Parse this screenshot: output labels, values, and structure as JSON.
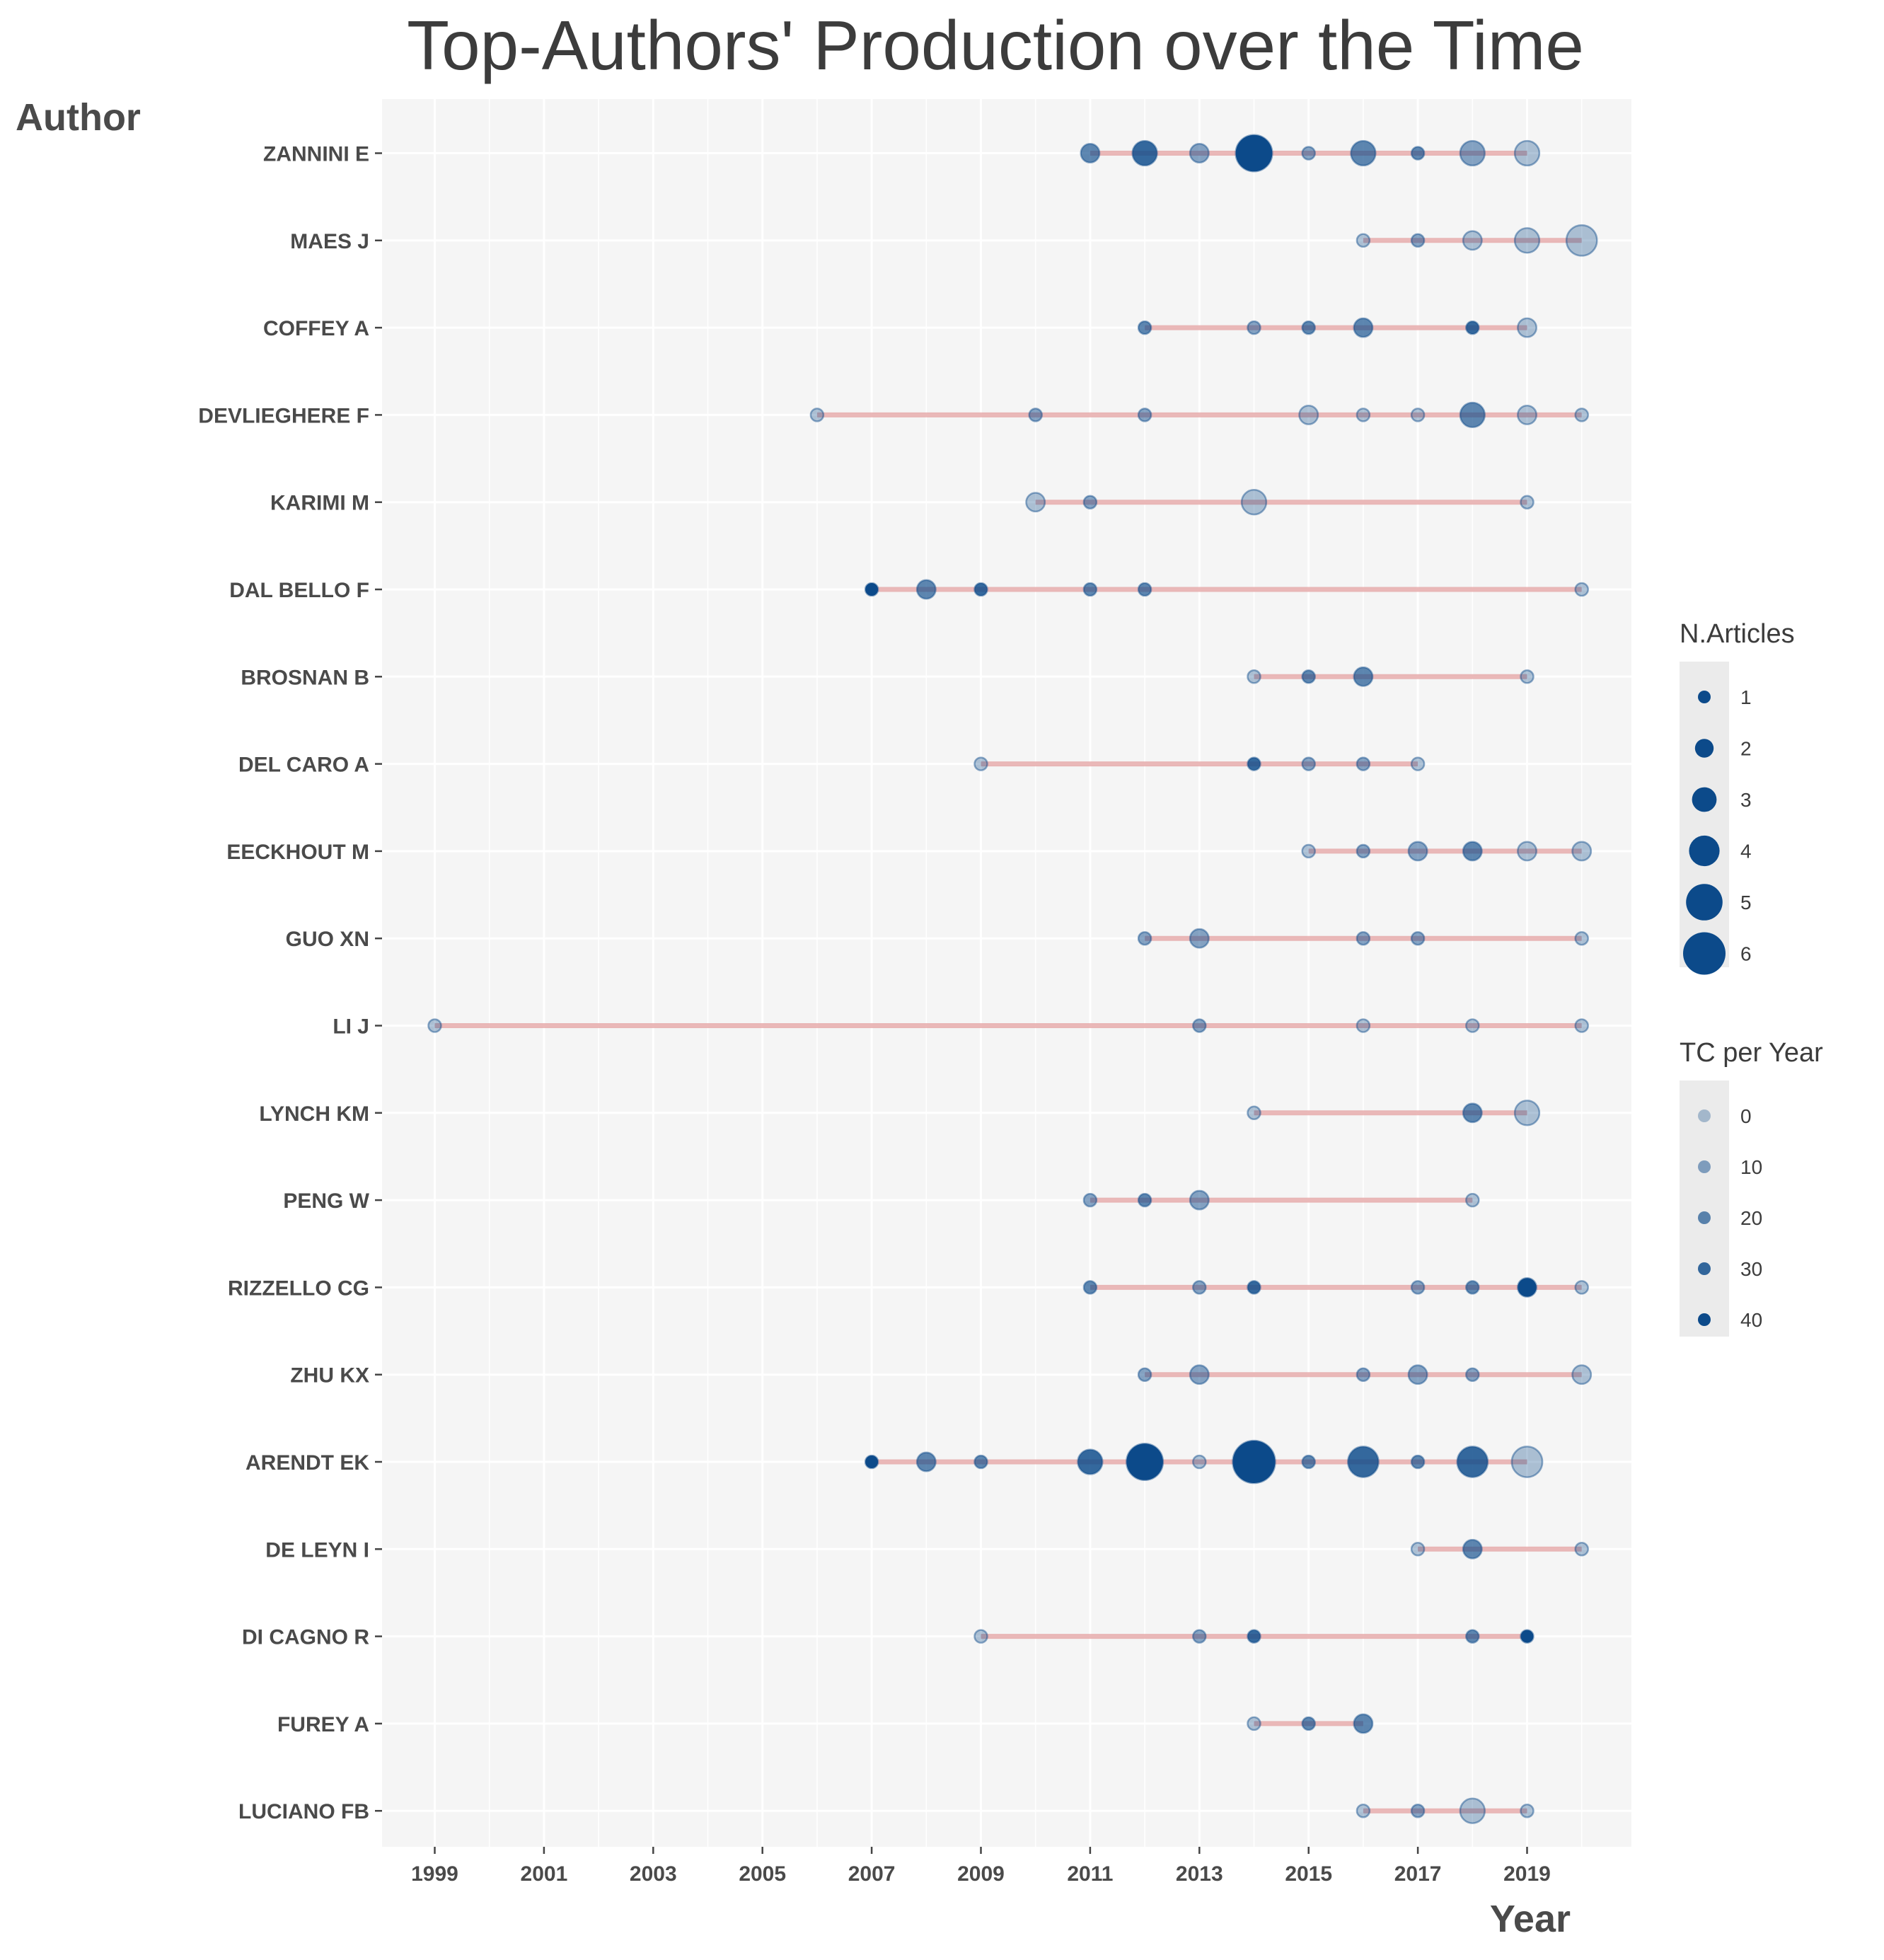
{
  "chart_data": {
    "type": "scatter",
    "title": "Top-Authors' Production over the Time",
    "xlabel": "Year",
    "ylabel": "Author",
    "xlim": [
      1998,
      2020.5
    ],
    "x_ticks": [
      1999,
      2001,
      2003,
      2005,
      2007,
      2009,
      2011,
      2013,
      2015,
      2017,
      2019
    ],
    "grid": true,
    "legend_position": "right",
    "colors": {
      "point": "#0c4a8a",
      "line": "#e3a0a0",
      "panel": "#f5f5f5",
      "grid": "#ffffff",
      "legend_bg": "#ebebeb"
    },
    "authors": [
      {
        "name": "ZANNINI E",
        "span": [
          2011,
          2019
        ],
        "points": [
          {
            "year": 2011,
            "articles": 2,
            "tc": 20
          },
          {
            "year": 2012,
            "articles": 3,
            "tc": 30
          },
          {
            "year": 2013,
            "articles": 2,
            "tc": 10
          },
          {
            "year": 2014,
            "articles": 5,
            "tc": 40
          },
          {
            "year": 2015,
            "articles": 1,
            "tc": 10
          },
          {
            "year": 2016,
            "articles": 3,
            "tc": 20
          },
          {
            "year": 2017,
            "articles": 1,
            "tc": 20
          },
          {
            "year": 2018,
            "articles": 3,
            "tc": 10
          },
          {
            "year": 2019,
            "articles": 3,
            "tc": 0
          }
        ]
      },
      {
        "name": "MAES J",
        "span": [
          2016,
          2020
        ],
        "points": [
          {
            "year": 2016,
            "articles": 1,
            "tc": 0
          },
          {
            "year": 2017,
            "articles": 1,
            "tc": 10
          },
          {
            "year": 2018,
            "articles": 2,
            "tc": 0
          },
          {
            "year": 2019,
            "articles": 3,
            "tc": 0
          },
          {
            "year": 2020,
            "articles": 4,
            "tc": 0
          }
        ]
      },
      {
        "name": "COFFEY A",
        "span": [
          2012,
          2019
        ],
        "points": [
          {
            "year": 2012,
            "articles": 1,
            "tc": 20
          },
          {
            "year": 2014,
            "articles": 1,
            "tc": 10
          },
          {
            "year": 2015,
            "articles": 1,
            "tc": 20
          },
          {
            "year": 2016,
            "articles": 2,
            "tc": 20
          },
          {
            "year": 2018,
            "articles": 1,
            "tc": 30
          },
          {
            "year": 2019,
            "articles": 2,
            "tc": 0
          }
        ]
      },
      {
        "name": "DEVLIEGHERE F",
        "span": [
          2006,
          2020
        ],
        "points": [
          {
            "year": 2006,
            "articles": 1,
            "tc": 0
          },
          {
            "year": 2010,
            "articles": 1,
            "tc": 10
          },
          {
            "year": 2012,
            "articles": 1,
            "tc": 10
          },
          {
            "year": 2015,
            "articles": 2,
            "tc": 0
          },
          {
            "year": 2016,
            "articles": 1,
            "tc": 0
          },
          {
            "year": 2017,
            "articles": 1,
            "tc": 0
          },
          {
            "year": 2018,
            "articles": 3,
            "tc": 20
          },
          {
            "year": 2019,
            "articles": 2,
            "tc": 0
          },
          {
            "year": 2020,
            "articles": 1,
            "tc": 0
          }
        ]
      },
      {
        "name": "KARIMI M",
        "span": [
          2010,
          2019
        ],
        "points": [
          {
            "year": 2010,
            "articles": 2,
            "tc": 0
          },
          {
            "year": 2011,
            "articles": 1,
            "tc": 10
          },
          {
            "year": 2014,
            "articles": 3,
            "tc": 0
          },
          {
            "year": 2019,
            "articles": 1,
            "tc": 0
          }
        ]
      },
      {
        "name": "DAL BELLO F",
        "span": [
          2007,
          2020
        ],
        "points": [
          {
            "year": 2007,
            "articles": 1,
            "tc": 40
          },
          {
            "year": 2008,
            "articles": 2,
            "tc": 20
          },
          {
            "year": 2009,
            "articles": 1,
            "tc": 30
          },
          {
            "year": 2011,
            "articles": 1,
            "tc": 20
          },
          {
            "year": 2012,
            "articles": 1,
            "tc": 20
          },
          {
            "year": 2020,
            "articles": 1,
            "tc": 0
          }
        ]
      },
      {
        "name": "BROSNAN B",
        "span": [
          2014,
          2019
        ],
        "points": [
          {
            "year": 2014,
            "articles": 1,
            "tc": 0
          },
          {
            "year": 2015,
            "articles": 1,
            "tc": 20
          },
          {
            "year": 2016,
            "articles": 2,
            "tc": 20
          },
          {
            "year": 2019,
            "articles": 1,
            "tc": 0
          }
        ]
      },
      {
        "name": "DEL CARO A",
        "span": [
          2009,
          2017
        ],
        "points": [
          {
            "year": 2009,
            "articles": 1,
            "tc": 0
          },
          {
            "year": 2014,
            "articles": 1,
            "tc": 30
          },
          {
            "year": 2015,
            "articles": 1,
            "tc": 10
          },
          {
            "year": 2016,
            "articles": 1,
            "tc": 10
          },
          {
            "year": 2017,
            "articles": 1,
            "tc": 0
          }
        ]
      },
      {
        "name": "EECKHOUT M",
        "span": [
          2015,
          2020
        ],
        "points": [
          {
            "year": 2015,
            "articles": 1,
            "tc": 0
          },
          {
            "year": 2016,
            "articles": 1,
            "tc": 10
          },
          {
            "year": 2017,
            "articles": 2,
            "tc": 10
          },
          {
            "year": 2018,
            "articles": 2,
            "tc": 20
          },
          {
            "year": 2019,
            "articles": 2,
            "tc": 0
          },
          {
            "year": 2020,
            "articles": 2,
            "tc": 0
          }
        ]
      },
      {
        "name": "GUO XN",
        "span": [
          2012,
          2020
        ],
        "points": [
          {
            "year": 2012,
            "articles": 1,
            "tc": 10
          },
          {
            "year": 2013,
            "articles": 2,
            "tc": 10
          },
          {
            "year": 2016,
            "articles": 1,
            "tc": 10
          },
          {
            "year": 2017,
            "articles": 1,
            "tc": 10
          },
          {
            "year": 2020,
            "articles": 1,
            "tc": 0
          }
        ]
      },
      {
        "name": "LI J",
        "span": [
          1999,
          2020
        ],
        "points": [
          {
            "year": 1999,
            "articles": 1,
            "tc": 0
          },
          {
            "year": 2013,
            "articles": 1,
            "tc": 10
          },
          {
            "year": 2016,
            "articles": 1,
            "tc": 0
          },
          {
            "year": 2018,
            "articles": 1,
            "tc": 0
          },
          {
            "year": 2020,
            "articles": 1,
            "tc": 0
          }
        ]
      },
      {
        "name": "LYNCH KM",
        "span": [
          2014,
          2019
        ],
        "points": [
          {
            "year": 2014,
            "articles": 1,
            "tc": 0
          },
          {
            "year": 2018,
            "articles": 2,
            "tc": 20
          },
          {
            "year": 2019,
            "articles": 3,
            "tc": 0
          }
        ]
      },
      {
        "name": "PENG W",
        "span": [
          2011,
          2018
        ],
        "points": [
          {
            "year": 2011,
            "articles": 1,
            "tc": 10
          },
          {
            "year": 2012,
            "articles": 1,
            "tc": 20
          },
          {
            "year": 2013,
            "articles": 2,
            "tc": 10
          },
          {
            "year": 2018,
            "articles": 1,
            "tc": 0
          }
        ]
      },
      {
        "name": "RIZZELLO CG",
        "span": [
          2011,
          2020
        ],
        "points": [
          {
            "year": 2011,
            "articles": 1,
            "tc": 20
          },
          {
            "year": 2013,
            "articles": 1,
            "tc": 10
          },
          {
            "year": 2014,
            "articles": 1,
            "tc": 30
          },
          {
            "year": 2017,
            "articles": 1,
            "tc": 10
          },
          {
            "year": 2018,
            "articles": 1,
            "tc": 20
          },
          {
            "year": 2019,
            "articles": 2,
            "tc": 40
          },
          {
            "year": 2020,
            "articles": 1,
            "tc": 0
          }
        ]
      },
      {
        "name": "ZHU KX",
        "span": [
          2012,
          2020
        ],
        "points": [
          {
            "year": 2012,
            "articles": 1,
            "tc": 10
          },
          {
            "year": 2013,
            "articles": 2,
            "tc": 10
          },
          {
            "year": 2016,
            "articles": 1,
            "tc": 10
          },
          {
            "year": 2017,
            "articles": 2,
            "tc": 10
          },
          {
            "year": 2018,
            "articles": 1,
            "tc": 10
          },
          {
            "year": 2020,
            "articles": 2,
            "tc": 0
          }
        ]
      },
      {
        "name": "ARENDT EK",
        "span": [
          2007,
          2019
        ],
        "points": [
          {
            "year": 2007,
            "articles": 1,
            "tc": 40
          },
          {
            "year": 2008,
            "articles": 2,
            "tc": 20
          },
          {
            "year": 2009,
            "articles": 1,
            "tc": 20
          },
          {
            "year": 2011,
            "articles": 3,
            "tc": 30
          },
          {
            "year": 2012,
            "articles": 5,
            "tc": 40
          },
          {
            "year": 2013,
            "articles": 1,
            "tc": 0
          },
          {
            "year": 2014,
            "articles": 6,
            "tc": 40
          },
          {
            "year": 2015,
            "articles": 1,
            "tc": 20
          },
          {
            "year": 2016,
            "articles": 4,
            "tc": 30
          },
          {
            "year": 2017,
            "articles": 1,
            "tc": 20
          },
          {
            "year": 2018,
            "articles": 4,
            "tc": 30
          },
          {
            "year": 2019,
            "articles": 4,
            "tc": 0
          }
        ]
      },
      {
        "name": "DE LEYN I",
        "span": [
          2017,
          2020
        ],
        "points": [
          {
            "year": 2017,
            "articles": 1,
            "tc": 0
          },
          {
            "year": 2018,
            "articles": 2,
            "tc": 20
          },
          {
            "year": 2020,
            "articles": 1,
            "tc": 0
          }
        ]
      },
      {
        "name": "DI CAGNO R",
        "span": [
          2009,
          2019
        ],
        "points": [
          {
            "year": 2009,
            "articles": 1,
            "tc": 0
          },
          {
            "year": 2013,
            "articles": 1,
            "tc": 10
          },
          {
            "year": 2014,
            "articles": 1,
            "tc": 30
          },
          {
            "year": 2018,
            "articles": 1,
            "tc": 20
          },
          {
            "year": 2019,
            "articles": 1,
            "tc": 40
          }
        ]
      },
      {
        "name": "FUREY A",
        "span": [
          2014,
          2016
        ],
        "points": [
          {
            "year": 2014,
            "articles": 1,
            "tc": 0
          },
          {
            "year": 2015,
            "articles": 1,
            "tc": 20
          },
          {
            "year": 2016,
            "articles": 2,
            "tc": 20
          }
        ]
      },
      {
        "name": "LUCIANO FB",
        "span": [
          2016,
          2019
        ],
        "points": [
          {
            "year": 2016,
            "articles": 1,
            "tc": 0
          },
          {
            "year": 2017,
            "articles": 1,
            "tc": 10
          },
          {
            "year": 2018,
            "articles": 3,
            "tc": 0
          },
          {
            "year": 2019,
            "articles": 1,
            "tc": 0
          }
        ]
      }
    ],
    "legend_articles": {
      "title": "N.Articles",
      "values": [
        1,
        2,
        3,
        4,
        5,
        6
      ]
    },
    "legend_tc": {
      "title": "TC per Year",
      "values": [
        0,
        10,
        20,
        30,
        40
      ]
    }
  }
}
